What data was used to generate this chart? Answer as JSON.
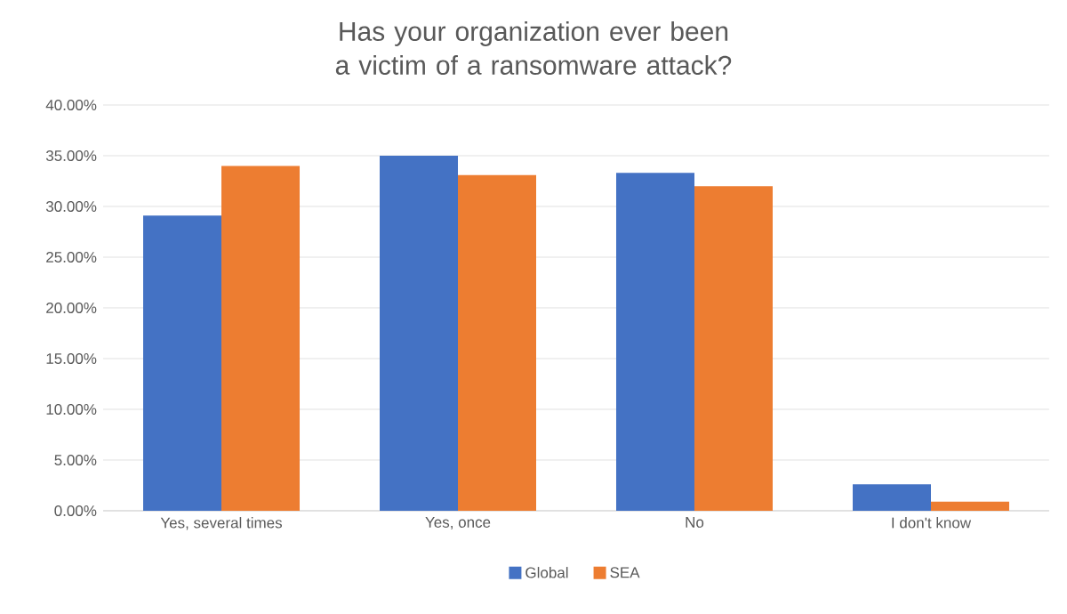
{
  "chart_data": {
    "type": "bar",
    "title": "Has your organization ever been a victim of a ransomware attack?",
    "categories": [
      "Yes, several times",
      "Yes, once",
      "No",
      "I don't know"
    ],
    "series": [
      {
        "name": "Global",
        "color": "#4472c4",
        "values": [
          29.1,
          35.0,
          33.3,
          2.6
        ]
      },
      {
        "name": "SEA",
        "color": "#ed7d31",
        "values": [
          34.0,
          33.1,
          32.0,
          0.9
        ]
      }
    ],
    "ylim": [
      0,
      40
    ],
    "yticks": [
      {
        "value": 0,
        "label": "0.00%"
      },
      {
        "value": 5,
        "label": "5.00%"
      },
      {
        "value": 10,
        "label": "10.00%"
      },
      {
        "value": 15,
        "label": "15.00%"
      },
      {
        "value": 20,
        "label": "20.00%"
      },
      {
        "value": 25,
        "label": "25.00%"
      },
      {
        "value": 30,
        "label": "30.00%"
      },
      {
        "value": 35,
        "label": "35.00%"
      },
      {
        "value": 40,
        "label": "40.00%"
      }
    ],
    "grid": "y",
    "legend": "bottom"
  }
}
